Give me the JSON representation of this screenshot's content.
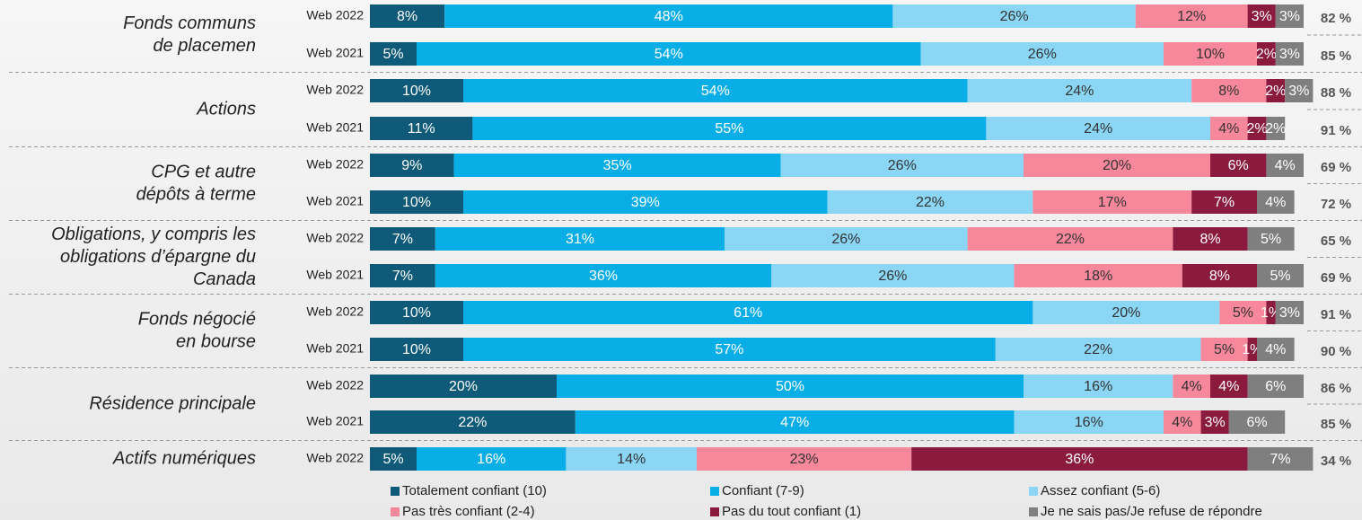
{
  "chart_data": {
    "type": "bar",
    "orientation": "horizontal",
    "stacked": true,
    "xlim": [
      0,
      100
    ],
    "groups": [
      {
        "label": [
          "Fonds communs",
          "de placemen"
        ],
        "categories": [
          "Web 2022",
          "Web 2021"
        ]
      },
      {
        "label": [
          "Actions"
        ],
        "categories": [
          "Web 2022",
          "Web 2021"
        ]
      },
      {
        "label": [
          "CPG et autre",
          "dépôts à terme"
        ],
        "categories": [
          "Web 2022",
          "Web 2021"
        ]
      },
      {
        "label": [
          "Obligations, y compris les",
          "obligations d’épargne du",
          "Canada"
        ],
        "categories": [
          "Web 2022",
          "Web 2021"
        ]
      },
      {
        "label": [
          "Fonds négocié",
          "en bourse"
        ],
        "categories": [
          "Web 2022",
          "Web 2021"
        ]
      },
      {
        "label": [
          "Résidence principale"
        ],
        "categories": [
          "Web 2022",
          "Web 2021"
        ]
      },
      {
        "label": [
          "Actifs numériques"
        ],
        "categories": [
          "Web 2022"
        ]
      }
    ],
    "series": [
      {
        "name": "Totalement confiant (10)",
        "color": "#0e5a78",
        "values": [
          8,
          5,
          10,
          11,
          9,
          10,
          7,
          7,
          10,
          10,
          20,
          22,
          5
        ],
        "value_labels": [
          "8%",
          "5%",
          "10%",
          "11%",
          "9%",
          "10%",
          "7%",
          "7%",
          "10%",
          "10%",
          "20%",
          "22%",
          "5%"
        ]
      },
      {
        "name": "Confiant (7-9)",
        "color": "#0aaee6",
        "values": [
          48,
          54,
          54,
          55,
          35,
          39,
          31,
          36,
          61,
          57,
          50,
          47,
          16
        ],
        "value_labels": [
          "48%",
          "54%",
          "54%",
          "55%",
          "35%",
          "39%",
          "31%",
          "36%",
          "61%",
          "57%",
          "50%",
          "47%",
          "16%"
        ]
      },
      {
        "name": "Assez confiant (5-6)",
        "color": "#8ad6f4",
        "values": [
          26,
          26,
          24,
          24,
          26,
          22,
          26,
          26,
          20,
          22,
          16,
          16,
          14
        ],
        "value_labels": [
          "26%",
          "26%",
          "24%",
          "24%",
          "26%",
          "22%",
          "26%",
          "26%",
          "20%",
          "22%",
          "16%",
          "16%",
          "14%"
        ]
      },
      {
        "name": "Pas très confiant (2-4)",
        "color": "#f7889b",
        "values": [
          12,
          10,
          8,
          4,
          20,
          17,
          22,
          18,
          5,
          5,
          4,
          4,
          23
        ],
        "value_labels": [
          "12%",
          "10%",
          "8%",
          "4%",
          "20%",
          "17%",
          "22%",
          "18%",
          "5%",
          "5%",
          "4%",
          "4%",
          "23%"
        ]
      },
      {
        "name": "Pas du tout confiant (1)",
        "color": "#8a1a3e",
        "values": [
          3,
          2,
          2,
          2,
          6,
          7,
          8,
          8,
          1,
          1,
          4,
          3,
          36
        ],
        "value_labels": [
          "3%",
          "2%",
          "2%",
          "2%",
          "6%",
          "7%",
          "8%",
          "8%",
          "1%",
          "1%",
          "4%",
          "3%",
          "36%"
        ]
      },
      {
        "name": "Je ne sais pas/Je refuse de répondre",
        "color": "#7f7f7f",
        "values": [
          3,
          3,
          3,
          2,
          4,
          4,
          5,
          5,
          3,
          4,
          6,
          6,
          7
        ],
        "value_labels": [
          "3%",
          "3%",
          "3%",
          "2%",
          "4%",
          "4%",
          "5%",
          "5%",
          "3%",
          "4%",
          "6%",
          "6%",
          "7%"
        ]
      }
    ],
    "total": {
      "values": [
        82,
        85,
        88,
        91,
        69,
        72,
        65,
        69,
        91,
        90,
        86,
        85,
        34
      ],
      "value_labels": [
        "82 %",
        "85 %",
        "88 %",
        "91 %",
        "69 %",
        "72 %",
        "65 %",
        "69 %",
        "91 %",
        "90 %",
        "86 %",
        "85 %",
        "34 %"
      ]
    }
  }
}
